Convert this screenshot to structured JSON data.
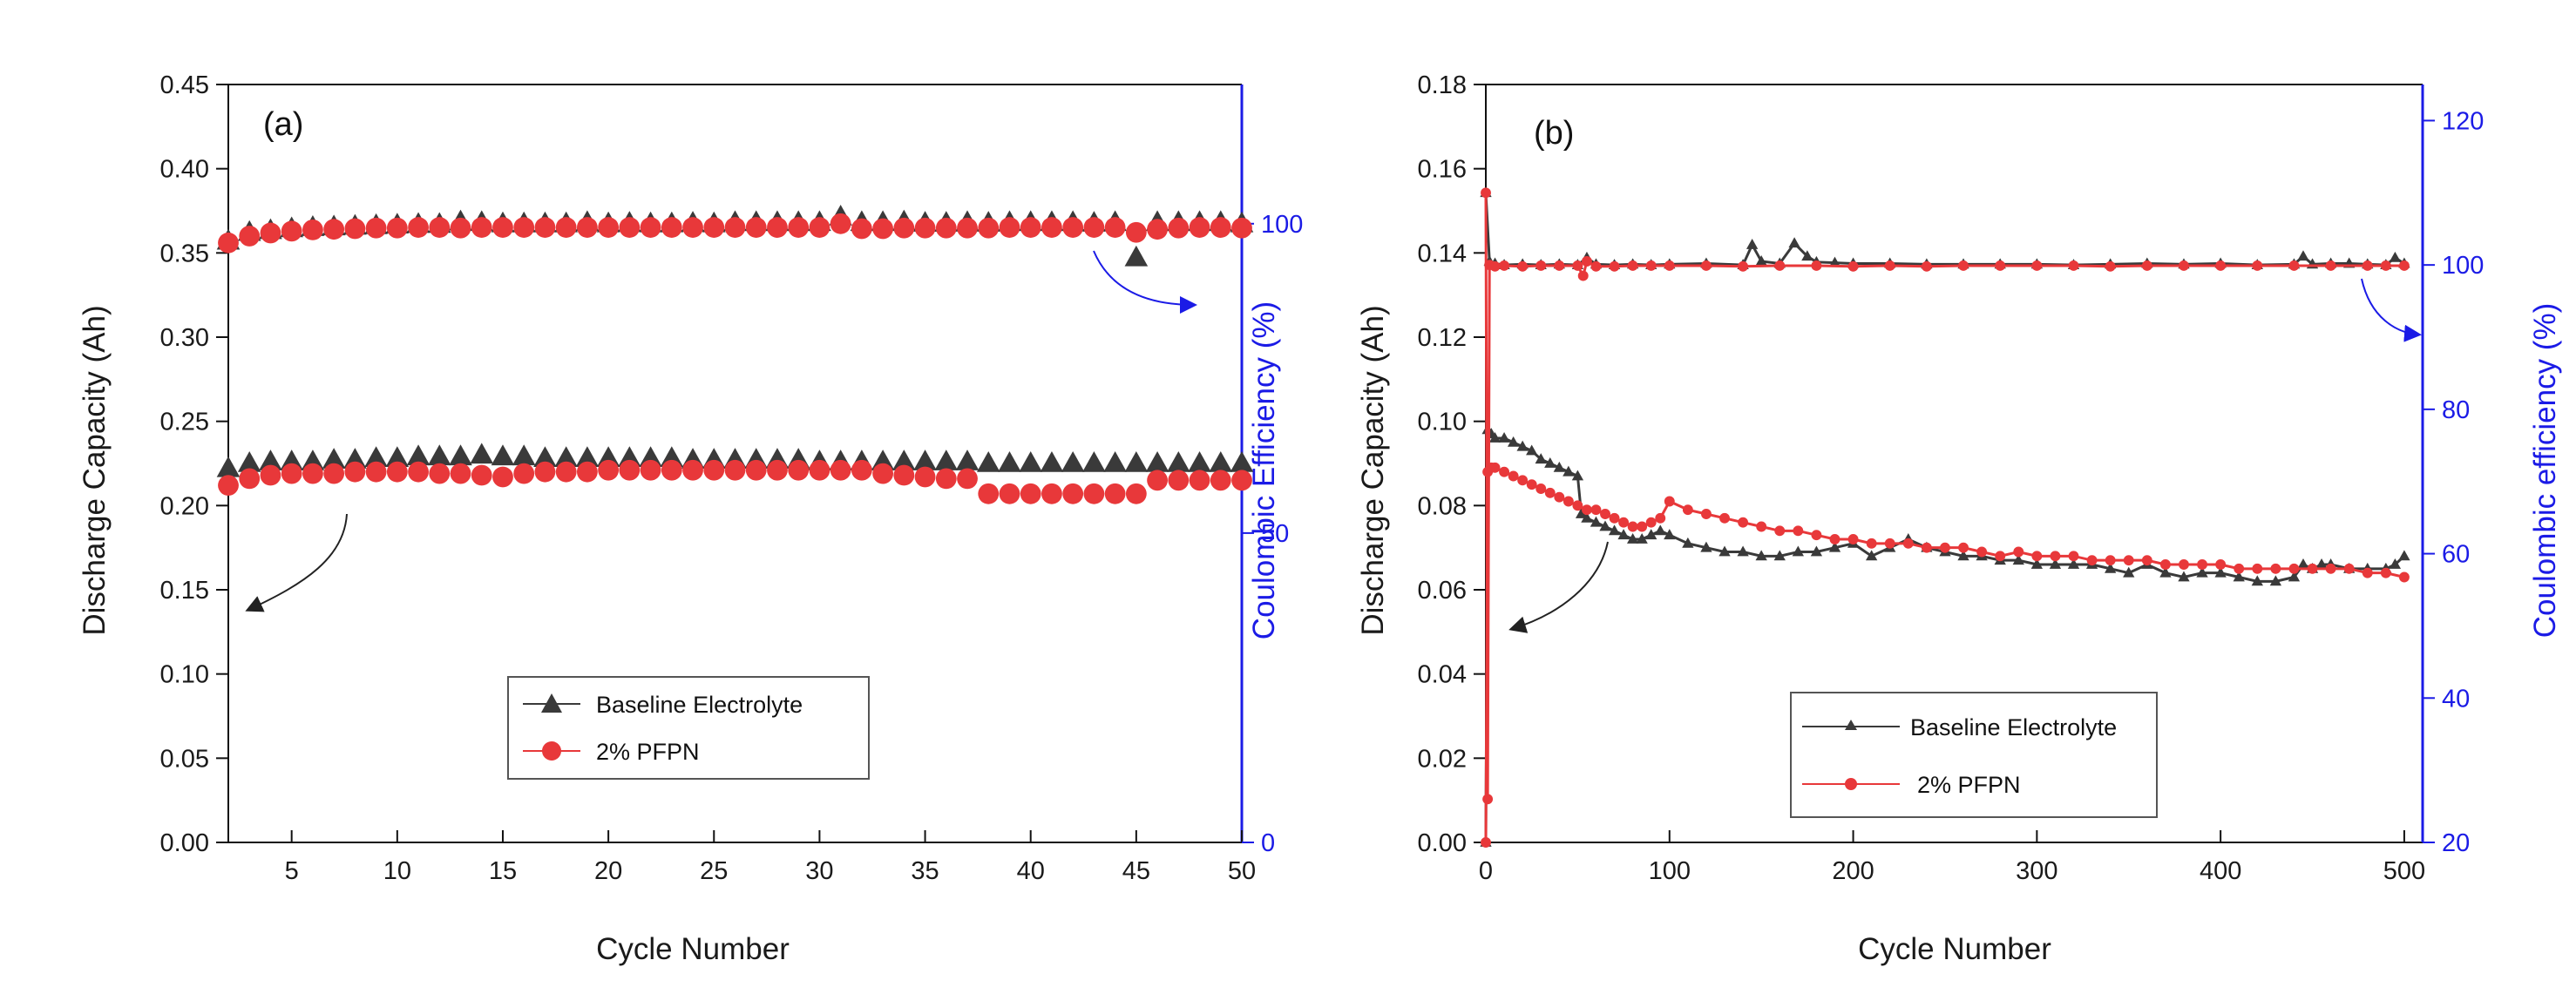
{
  "chart_data": [
    {
      "type": "scatter",
      "panel_label": "(a)",
      "xlabel": "Cycle Number",
      "ylabel": "Discharge Capacity (Ah)",
      "y2label": "Coulombic Efficiency (%)",
      "xlim": [
        2,
        50
      ],
      "ylim": [
        0,
        0.45
      ],
      "y2lim": [
        0,
        122.5
      ],
      "xticks": [
        5,
        10,
        15,
        20,
        25,
        30,
        35,
        40,
        45,
        50
      ],
      "yticks": [
        0.0,
        0.05,
        0.1,
        0.15,
        0.2,
        0.25,
        0.3,
        0.35,
        0.4,
        0.45
      ],
      "y2ticks": [
        0,
        50,
        100
      ],
      "legend_position": "bottom-center",
      "colors": {
        "baseline": "#3a3a3a",
        "pfpn": "#e8383a",
        "right_axis": "#1b1be6"
      },
      "legend": [
        "Baseline Electrolyte",
        "2% PFPN"
      ],
      "series": [
        {
          "name": "Baseline Electrolyte",
          "axis": "left",
          "marker": "triangle",
          "x": [
            2,
            3,
            4,
            5,
            6,
            7,
            8,
            9,
            10,
            11,
            12,
            13,
            14,
            15,
            16,
            17,
            18,
            19,
            20,
            21,
            22,
            23,
            24,
            25,
            26,
            27,
            28,
            29,
            30,
            31,
            32,
            33,
            34,
            35,
            36,
            37,
            38,
            39,
            40,
            41,
            42,
            43,
            44,
            45,
            46,
            47,
            48,
            49,
            50
          ],
          "y": [
            0.222,
            0.225,
            0.226,
            0.226,
            0.226,
            0.227,
            0.227,
            0.228,
            0.228,
            0.229,
            0.229,
            0.229,
            0.23,
            0.229,
            0.229,
            0.228,
            0.228,
            0.228,
            0.228,
            0.228,
            0.228,
            0.228,
            0.227,
            0.227,
            0.227,
            0.227,
            0.227,
            0.227,
            0.226,
            0.226,
            0.226,
            0.226,
            0.226,
            0.226,
            0.226,
            0.226,
            0.225,
            0.225,
            0.225,
            0.225,
            0.225,
            0.225,
            0.225,
            0.225,
            0.225,
            0.225,
            0.225,
            0.225,
            0.225
          ]
        },
        {
          "name": "2% PFPN",
          "axis": "left",
          "marker": "circle",
          "x": [
            2,
            3,
            4,
            5,
            6,
            7,
            8,
            9,
            10,
            11,
            12,
            13,
            14,
            15,
            16,
            17,
            18,
            19,
            20,
            21,
            22,
            23,
            24,
            25,
            26,
            27,
            28,
            29,
            30,
            31,
            32,
            33,
            34,
            35,
            36,
            37,
            38,
            39,
            40,
            41,
            42,
            43,
            44,
            45,
            46,
            47,
            48,
            49,
            50
          ],
          "y": [
            0.212,
            0.216,
            0.218,
            0.219,
            0.219,
            0.219,
            0.22,
            0.22,
            0.22,
            0.22,
            0.219,
            0.219,
            0.218,
            0.217,
            0.219,
            0.22,
            0.22,
            0.22,
            0.221,
            0.221,
            0.221,
            0.221,
            0.221,
            0.221,
            0.221,
            0.221,
            0.221,
            0.221,
            0.221,
            0.221,
            0.221,
            0.219,
            0.218,
            0.217,
            0.216,
            0.216,
            0.207,
            0.207,
            0.207,
            0.207,
            0.207,
            0.207,
            0.207,
            0.207,
            0.215,
            0.215,
            0.215,
            0.215,
            0.215
          ]
        },
        {
          "name": "Baseline Electrolyte",
          "axis": "right",
          "marker": "triangle",
          "x": [
            2,
            3,
            4,
            5,
            6,
            7,
            8,
            9,
            10,
            11,
            12,
            13,
            14,
            15,
            16,
            17,
            18,
            19,
            20,
            21,
            22,
            23,
            24,
            25,
            26,
            27,
            28,
            29,
            30,
            31,
            32,
            33,
            34,
            35,
            36,
            37,
            38,
            39,
            40,
            41,
            42,
            43,
            44,
            45,
            46,
            47,
            48,
            49,
            50
          ],
          "y": [
            97.2,
            98.6,
            98.9,
            99.2,
            99.4,
            99.5,
            99.6,
            99.7,
            99.8,
            99.9,
            99.9,
            100.3,
            100.2,
            100.0,
            100.0,
            100.0,
            100.0,
            100.2,
            100.0,
            100.1,
            100.0,
            100.0,
            100.1,
            100.0,
            100.2,
            100.2,
            100.2,
            100.2,
            100.2,
            101.1,
            100.2,
            100.2,
            100.3,
            100.1,
            100.1,
            100.2,
            100.1,
            100.2,
            100.2,
            100.2,
            100.2,
            100.1,
            100.2,
            94.5,
            100.2,
            100.2,
            100.2,
            100.2,
            100.0
          ]
        },
        {
          "name": "2% PFPN",
          "axis": "right",
          "marker": "circle",
          "x": [
            2,
            3,
            4,
            5,
            6,
            7,
            8,
            9,
            10,
            11,
            12,
            13,
            14,
            15,
            16,
            17,
            18,
            19,
            20,
            21,
            22,
            23,
            24,
            25,
            26,
            27,
            28,
            29,
            30,
            31,
            32,
            33,
            34,
            35,
            36,
            37,
            38,
            39,
            40,
            41,
            42,
            43,
            44,
            45,
            46,
            47,
            48,
            49,
            50
          ],
          "y": [
            96.9,
            98.0,
            98.5,
            98.8,
            99.0,
            99.1,
            99.2,
            99.3,
            99.3,
            99.4,
            99.4,
            99.3,
            99.4,
            99.4,
            99.4,
            99.4,
            99.4,
            99.4,
            99.4,
            99.4,
            99.4,
            99.4,
            99.4,
            99.4,
            99.4,
            99.4,
            99.4,
            99.4,
            99.4,
            100.0,
            99.2,
            99.2,
            99.3,
            99.3,
            99.3,
            99.3,
            99.3,
            99.4,
            99.4,
            99.4,
            99.4,
            99.4,
            99.4,
            98.6,
            99.1,
            99.3,
            99.4,
            99.4,
            99.3
          ]
        }
      ]
    },
    {
      "type": "scatter",
      "panel_label": "(b)",
      "xlabel": "Cycle Number",
      "ylabel": "Discharge Capacity (Ah)",
      "y2label": "Coulombic efficiency (%)",
      "xlim": [
        0,
        510
      ],
      "ylim": [
        0,
        0.18
      ],
      "y2lim": [
        20,
        125
      ],
      "xticks": [
        0,
        100,
        200,
        300,
        400,
        500
      ],
      "yticks": [
        0.0,
        0.02,
        0.04,
        0.06,
        0.08,
        0.1,
        0.12,
        0.14,
        0.16,
        0.18
      ],
      "y2ticks": [
        20,
        40,
        60,
        80,
        100,
        120
      ],
      "legend_position": "bottom-center",
      "colors": {
        "baseline": "#3a3a3a",
        "pfpn": "#e8383a",
        "right_axis": "#1b1be6"
      },
      "legend": [
        "Baseline Electrolyte",
        "2% PFPN"
      ],
      "series": [
        {
          "name": "Baseline Electrolyte",
          "axis": "left",
          "marker": "triangle-line",
          "x": [
            0,
            1,
            3,
            5,
            10,
            15,
            20,
            25,
            30,
            35,
            40,
            45,
            50,
            52,
            55,
            60,
            65,
            70,
            75,
            80,
            85,
            90,
            95,
            100,
            110,
            120,
            130,
            140,
            150,
            160,
            170,
            180,
            190,
            200,
            210,
            220,
            230,
            240,
            250,
            260,
            270,
            280,
            290,
            300,
            310,
            320,
            330,
            340,
            350,
            360,
            370,
            380,
            390,
            400,
            410,
            420,
            430,
            440,
            445,
            450,
            455,
            460,
            470,
            480,
            490,
            495,
            500
          ],
          "y": [
            0.0,
            0.098,
            0.097,
            0.096,
            0.096,
            0.095,
            0.094,
            0.093,
            0.091,
            0.09,
            0.089,
            0.088,
            0.087,
            0.078,
            0.077,
            0.076,
            0.075,
            0.074,
            0.073,
            0.072,
            0.072,
            0.073,
            0.074,
            0.073,
            0.071,
            0.07,
            0.069,
            0.069,
            0.068,
            0.068,
            0.069,
            0.069,
            0.07,
            0.071,
            0.068,
            0.07,
            0.072,
            0.07,
            0.069,
            0.068,
            0.068,
            0.067,
            0.067,
            0.066,
            0.066,
            0.066,
            0.066,
            0.065,
            0.064,
            0.066,
            0.064,
            0.063,
            0.064,
            0.064,
            0.063,
            0.062,
            0.062,
            0.063,
            0.066,
            0.065,
            0.066,
            0.066,
            0.065,
            0.065,
            0.065,
            0.066,
            0.068
          ]
        },
        {
          "name": "2% PFPN",
          "axis": "left",
          "marker": "circle-line",
          "x": [
            0,
            1,
            3,
            5,
            10,
            15,
            20,
            25,
            30,
            35,
            40,
            45,
            50,
            55,
            60,
            65,
            70,
            75,
            80,
            85,
            90,
            95,
            100,
            110,
            120,
            130,
            140,
            150,
            160,
            170,
            180,
            190,
            200,
            210,
            220,
            230,
            240,
            250,
            260,
            270,
            280,
            290,
            300,
            310,
            320,
            330,
            340,
            350,
            360,
            370,
            380,
            390,
            400,
            410,
            420,
            430,
            440,
            450,
            460,
            470,
            480,
            490,
            500
          ],
          "y": [
            0.0,
            0.088,
            0.089,
            0.089,
            0.088,
            0.087,
            0.086,
            0.085,
            0.084,
            0.083,
            0.082,
            0.081,
            0.08,
            0.079,
            0.079,
            0.078,
            0.077,
            0.076,
            0.075,
            0.075,
            0.076,
            0.077,
            0.081,
            0.079,
            0.078,
            0.077,
            0.076,
            0.075,
            0.074,
            0.074,
            0.073,
            0.072,
            0.072,
            0.071,
            0.071,
            0.071,
            0.07,
            0.07,
            0.07,
            0.069,
            0.068,
            0.069,
            0.068,
            0.068,
            0.068,
            0.067,
            0.067,
            0.067,
            0.067,
            0.066,
            0.066,
            0.066,
            0.066,
            0.065,
            0.065,
            0.065,
            0.065,
            0.065,
            0.065,
            0.065,
            0.064,
            0.064,
            0.063
          ]
        },
        {
          "name": "Baseline Electrolyte",
          "axis": "right",
          "marker": "triangle-line",
          "x": [
            0,
            2,
            5,
            10,
            20,
            30,
            40,
            50,
            55,
            60,
            70,
            80,
            90,
            100,
            120,
            140,
            145,
            150,
            160,
            168,
            175,
            180,
            190,
            200,
            220,
            240,
            260,
            280,
            300,
            320,
            340,
            360,
            380,
            400,
            420,
            440,
            445,
            450,
            460,
            470,
            480,
            490,
            495,
            500
          ],
          "y": [
            110.0,
            100.5,
            100.2,
            100.0,
            100.1,
            100.0,
            100.1,
            100.0,
            101.0,
            100.1,
            100.0,
            100.1,
            100.0,
            100.1,
            100.2,
            100.0,
            102.8,
            100.5,
            100.2,
            103.0,
            101.2,
            100.4,
            100.3,
            100.2,
            100.2,
            100.1,
            100.1,
            100.1,
            100.1,
            100.0,
            100.1,
            100.2,
            100.1,
            100.2,
            100.0,
            100.1,
            101.2,
            100.1,
            100.2,
            100.2,
            100.1,
            100.0,
            101.0,
            100.2
          ]
        },
        {
          "name": "2% PFPN",
          "axis": "right",
          "marker": "circle-line",
          "x": [
            0,
            1,
            2,
            5,
            10,
            20,
            30,
            40,
            50,
            53,
            55,
            60,
            70,
            80,
            90,
            100,
            120,
            140,
            160,
            180,
            200,
            220,
            240,
            260,
            280,
            300,
            320,
            340,
            360,
            380,
            400,
            420,
            440,
            460,
            480,
            490,
            500
          ],
          "y": [
            110.0,
            26.0,
            100.0,
            99.8,
            99.9,
            99.8,
            99.9,
            99.9,
            99.9,
            98.5,
            100.5,
            99.8,
            99.8,
            99.9,
            99.9,
            99.9,
            99.9,
            99.8,
            99.9,
            99.9,
            99.8,
            99.9,
            99.8,
            99.9,
            99.9,
            99.9,
            99.9,
            99.8,
            99.9,
            99.9,
            99.9,
            99.9,
            99.9,
            99.9,
            99.9,
            99.9,
            99.9
          ]
        }
      ]
    }
  ]
}
